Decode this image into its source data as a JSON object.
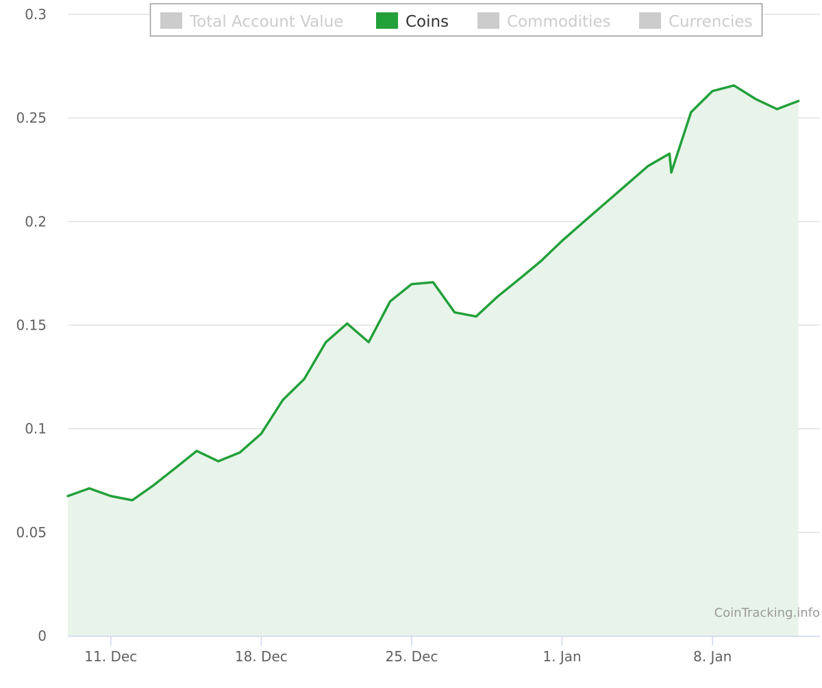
{
  "chart_data": {
    "type": "area",
    "title": "",
    "xlabel": "",
    "ylabel": "",
    "ylim": [
      0,
      0.3
    ],
    "y_ticks": [
      0,
      0.05,
      0.1,
      0.15,
      0.2,
      0.25,
      0.3
    ],
    "y_tick_labels": [
      "0",
      "0.05",
      "0.1",
      "0.15",
      "0.2",
      "0.25",
      "0.3"
    ],
    "x_tick_labels": [
      "11. Dec",
      "18. Dec",
      "25. Dec",
      "1. Jan",
      "8. Jan"
    ],
    "x_tick_dates": [
      "2017-12-11",
      "2017-12-18",
      "2017-12-25",
      "2018-01-01",
      "2018-01-08"
    ],
    "xlim": [
      "2017-12-09",
      "2018-01-13"
    ],
    "grid": true,
    "legend_position": "top",
    "legend": [
      {
        "name": "Total Account Value",
        "active": false,
        "color": "#cccccc"
      },
      {
        "name": "Coins",
        "active": true,
        "color": "#22a03a"
      },
      {
        "name": "Commodities",
        "active": false,
        "color": "#cccccc"
      },
      {
        "name": "Currencies",
        "active": false,
        "color": "#cccccc"
      }
    ],
    "series": [
      {
        "name": "Coins",
        "color": "#22a03a",
        "fill_color": "#e8f4ea",
        "x": [
          "2017-12-09",
          "2017-12-10",
          "2017-12-11",
          "2017-12-12",
          "2017-12-13",
          "2017-12-14",
          "2017-12-15",
          "2017-12-16",
          "2017-12-17",
          "2017-12-18",
          "2017-12-19",
          "2017-12-20",
          "2017-12-21",
          "2017-12-22",
          "2017-12-23",
          "2017-12-24",
          "2017-12-25",
          "2017-12-26",
          "2017-12-27",
          "2017-12-28",
          "2017-12-29",
          "2017-12-30",
          "2017-12-31",
          "2018-01-01",
          "2018-01-02",
          "2018-01-03",
          "2018-01-04",
          "2018-01-05",
          "2018-01-06 00:00",
          "2018-01-06 02:00",
          "2018-01-07",
          "2018-01-08",
          "2018-01-09",
          "2018-01-10",
          "2018-01-11",
          "2018-01-12"
        ],
        "values": [
          0.0675,
          0.0712,
          0.0675,
          0.0655,
          0.0728,
          0.081,
          0.0893,
          0.0843,
          0.0885,
          0.0976,
          0.1138,
          0.124,
          0.1417,
          0.1508,
          0.1418,
          0.1615,
          0.1698,
          0.1707,
          0.1562,
          0.1542,
          0.1638,
          0.1722,
          0.1808,
          0.1907,
          0.1998,
          0.2088,
          0.2178,
          0.2268,
          0.2328,
          0.2237,
          0.2528,
          0.263,
          0.2657,
          0.2592,
          0.2543,
          0.2582
        ]
      }
    ]
  },
  "credit": "CoinTracking.info"
}
